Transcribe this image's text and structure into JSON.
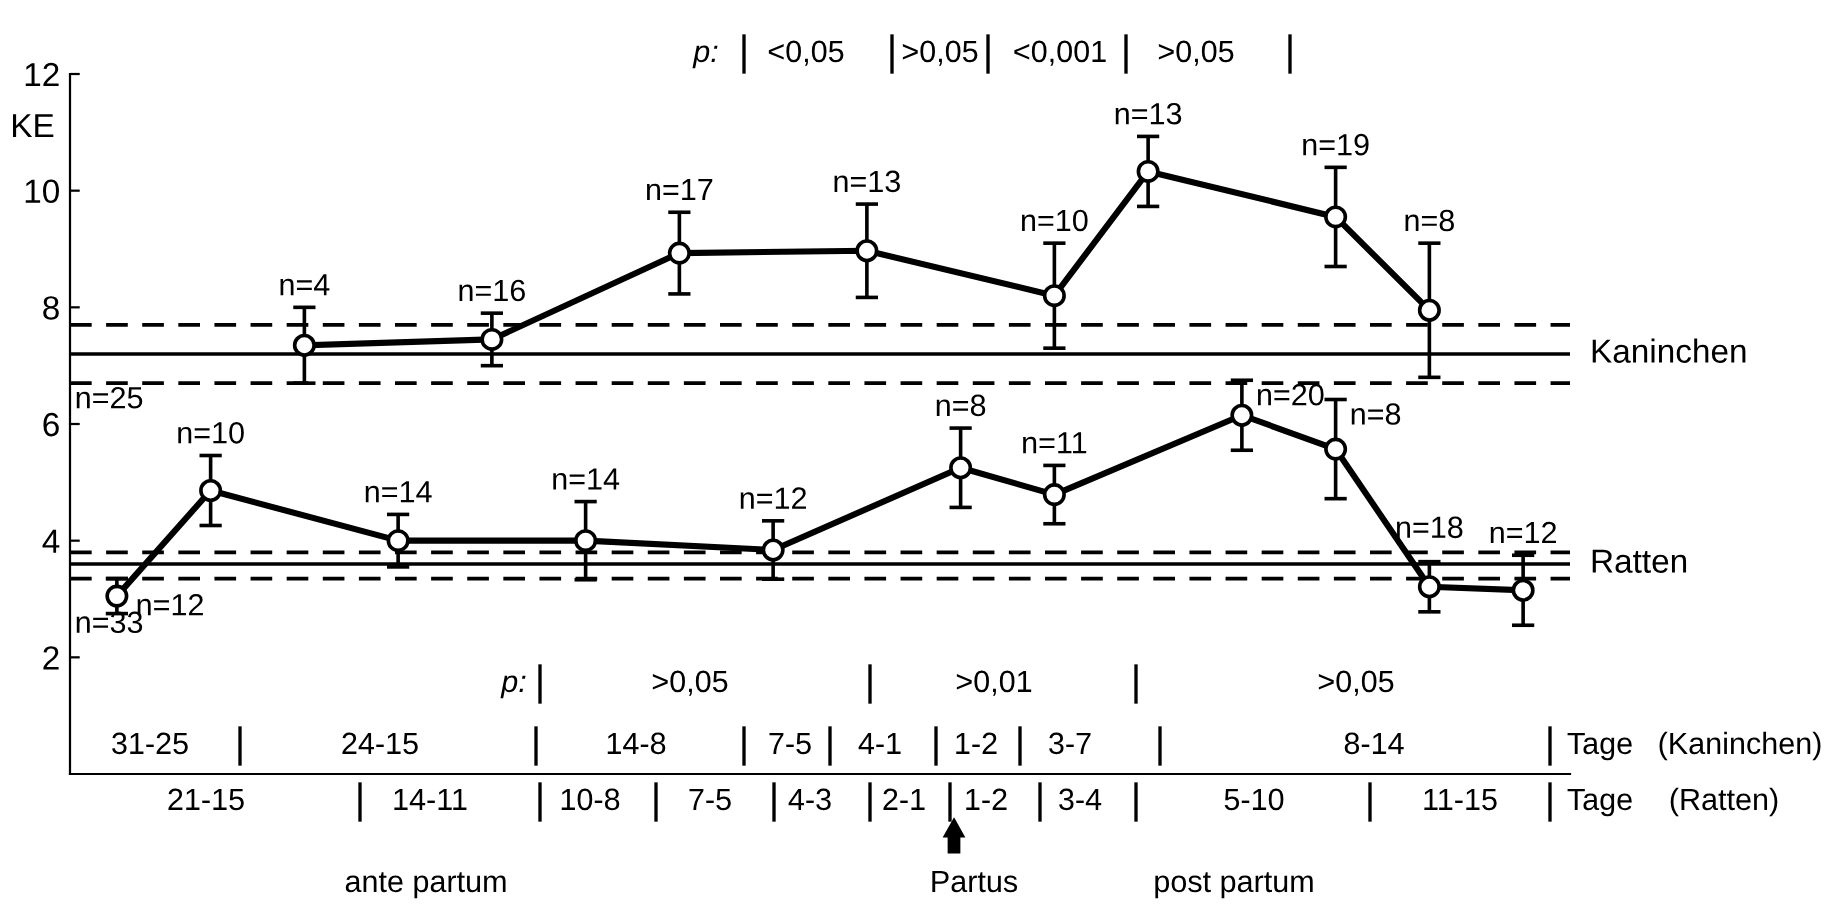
{
  "chart_data": {
    "type": "line",
    "ylabel": "KE",
    "ylim": [
      0,
      12
    ],
    "yticks": [
      2,
      4,
      6,
      8,
      10,
      12
    ],
    "tick_labels": "y",
    "marker": "circle",
    "line_style": "solid",
    "categories": [
      null,
      null,
      null,
      null,
      null,
      null,
      null,
      null,
      null,
      null,
      null,
      null,
      null,
      null,
      null,
      null
    ],
    "series": [
      {
        "name": "Kaninchen",
        "color": "#000000",
        "values": [
          null,
          null,
          7.35,
          null,
          7.45,
          null,
          8.93,
          null,
          8.97,
          null,
          8.2,
          10.33,
          null,
          9.55,
          7.95,
          null
        ],
        "errors": [
          null,
          null,
          0.65,
          null,
          0.45,
          null,
          0.7,
          null,
          0.8,
          null,
          0.9,
          0.6,
          null,
          0.85,
          1.15,
          null
        ]
      },
      {
        "name": "Ratten",
        "color": "#000000",
        "values": [
          3.05,
          4.86,
          null,
          4.0,
          null,
          4.0,
          null,
          3.84,
          null,
          5.25,
          4.79,
          null,
          6.15,
          5.57,
          3.21,
          3.15
        ],
        "errors": [
          0.3,
          0.6,
          null,
          0.45,
          null,
          0.67,
          null,
          0.5,
          null,
          0.68,
          0.5,
          null,
          0.6,
          0.85,
          0.43,
          0.6
        ]
      }
    ],
    "ref_lines": [
      {
        "axis": "y",
        "value": 7.2,
        "color": "#000000",
        "line_style": "solid"
      },
      {
        "axis": "y",
        "value": 7.7,
        "color": "#000000",
        "line_style": "dashed"
      },
      {
        "axis": "y",
        "value": 6.7,
        "color": "#000000",
        "line_style": "dashed"
      },
      {
        "axis": "y",
        "value": 3.6,
        "color": "#000000",
        "line_style": "solid"
      },
      {
        "axis": "y",
        "value": 3.8,
        "color": "#000000",
        "line_style": "dashed"
      },
      {
        "axis": "y",
        "value": 3.35,
        "color": "#000000",
        "line_style": "dashed"
      }
    ],
    "annotations": [
      "p:",
      "<0,05",
      ">0,05",
      "<0,001",
      ">0,05",
      "p:",
      ">0,05",
      ">0,01",
      ">0,05",
      "31-25",
      "24-15",
      "14-8",
      "7-5",
      "4-1",
      "1-2",
      "3-7",
      "8-14",
      "Tage",
      "(Kaninchen)",
      "21-15",
      "14-11",
      "10-8",
      "7-5",
      "4-3",
      "2-1",
      "1-2",
      "3-4",
      "5-10",
      "11-15",
      "Tage",
      "(Ratten)",
      "ante partum",
      "Partus",
      "post partum",
      "n=25",
      "n=33",
      "n=4",
      "n=16",
      "n=17",
      "n=13",
      "n=10",
      "n=13",
      "n=19",
      "n=8",
      "n=12",
      "n=10",
      "n=14",
      "n=14",
      "n=12",
      "n=8",
      "n=11",
      "n=20",
      "n=8",
      "n=18",
      "n=12"
    ]
  }
}
